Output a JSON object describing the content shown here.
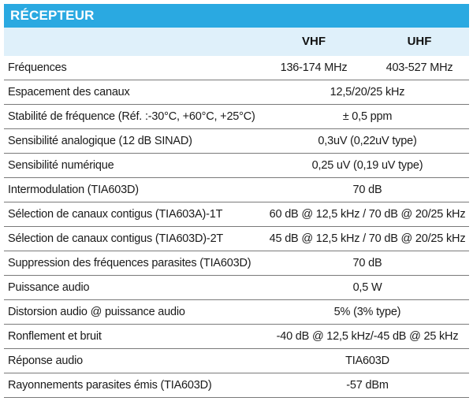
{
  "section_title": "RÉCEPTEUR",
  "columns": {
    "vhf": "VHF",
    "uhf": "UHF"
  },
  "rows": [
    {
      "label": "Fréquences",
      "vhf": "136-174 MHz",
      "uhf": "403-527 MHz"
    },
    {
      "label": "Espacement des canaux",
      "value": "12,5/20/25 kHz"
    },
    {
      "label": "Stabilité de fréquence (Réf. :-30°C, +60°C, +25°C)",
      "value": "± 0,5 ppm"
    },
    {
      "label": "Sensibilité analogique (12 dB SINAD)",
      "value": "0,3uV (0,22uV type)"
    },
    {
      "label": "Sensibilité numérique",
      "value": "0,25 uV (0,19 uV type)"
    },
    {
      "label": "Intermodulation (TIA603D)",
      "value": "70 dB"
    },
    {
      "label": "Sélection de canaux contigus (TIA603A)-1T",
      "value": "60 dB @ 12,5 kHz / 70 dB @ 20/25 kHz"
    },
    {
      "label": "Sélection de canaux contigus (TIA603D)-2T",
      "value": "45 dB @ 12,5 kHz / 70 dB @ 20/25 kHz"
    },
    {
      "label": "Suppression des fréquences parasites (TIA603D)",
      "value": "70 dB"
    },
    {
      "label": "Puissance audio",
      "value": "0,5 W"
    },
    {
      "label": "Distorsion audio @ puissance audio",
      "value": "5% (3% type)"
    },
    {
      "label": "Ronflement et bruit",
      "value": "-40 dB @ 12,5 kHz/-45 dB @ 25 kHz"
    },
    {
      "label": "Réponse audio",
      "value": "TIA603D"
    },
    {
      "label": "Rayonnements parasites émis (TIA603D)",
      "value": "-57 dBm"
    }
  ]
}
